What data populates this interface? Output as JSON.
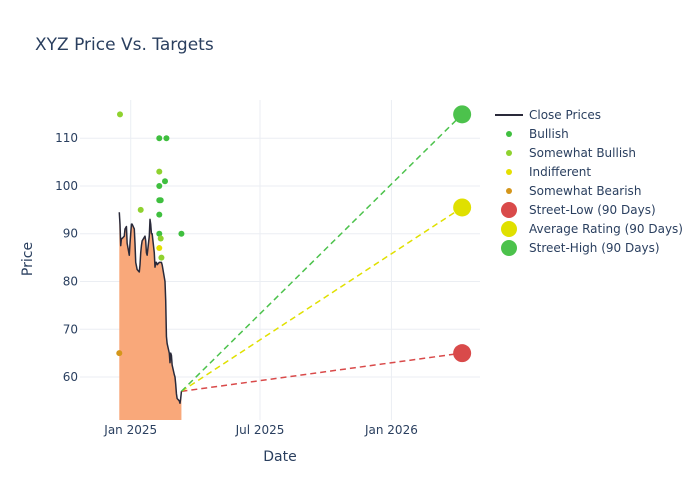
{
  "chart_data": {
    "type": "line",
    "title": "XYZ Price Vs. Targets",
    "xlabel": "Date",
    "ylabel": "Price",
    "xlim": [
      "2024-10-22",
      "2026-05-05"
    ],
    "ylim": [
      51,
      118
    ],
    "x_ticks": [
      {
        "date": "2025-01-01",
        "label": "Jan 2025"
      },
      {
        "date": "2025-07-01",
        "label": "Jul 2025"
      },
      {
        "date": "2026-01-01",
        "label": "Jan 2026"
      }
    ],
    "y_ticks": [
      60,
      70,
      80,
      90,
      100,
      110
    ],
    "grid": true,
    "legend_position": "right",
    "colors": {
      "close": "#2a2a3a",
      "area": "#f9a87a",
      "bullish": "#3fbf3f",
      "somewhat_bullish": "#8fd22f",
      "indifferent": "#e5e000",
      "somewhat_bearish": "#d4961a",
      "street_low": "#d94a4a",
      "average": "#e0e000",
      "street_high": "#4cc24c"
    },
    "series": [
      {
        "name": "Close Prices",
        "points": [
          [
            "2024-12-16",
            94.5
          ],
          [
            "2024-12-17",
            92.0
          ],
          [
            "2024-12-18",
            87.5
          ],
          [
            "2024-12-19",
            89.0
          ],
          [
            "2024-12-20",
            89.0
          ],
          [
            "2024-12-23",
            89.5
          ],
          [
            "2024-12-24",
            91.0
          ],
          [
            "2024-12-26",
            91.5
          ],
          [
            "2024-12-27",
            88.0
          ],
          [
            "2024-12-30",
            85.5
          ],
          [
            "2024-12-31",
            88.0
          ],
          [
            "2025-01-02",
            92.0
          ],
          [
            "2025-01-03",
            92.0
          ],
          [
            "2025-01-06",
            91.0
          ],
          [
            "2025-01-07",
            88.0
          ],
          [
            "2025-01-08",
            84.0
          ],
          [
            "2025-01-10",
            82.5
          ],
          [
            "2025-01-13",
            82.0
          ],
          [
            "2025-01-14",
            83.5
          ],
          [
            "2025-01-15",
            86.0
          ],
          [
            "2025-01-16",
            87.5
          ],
          [
            "2025-01-17",
            88.5
          ],
          [
            "2025-01-21",
            89.5
          ],
          [
            "2025-01-22",
            88.5
          ],
          [
            "2025-01-23",
            86.0
          ],
          [
            "2025-01-24",
            85.5
          ],
          [
            "2025-01-27",
            89.5
          ],
          [
            "2025-01-28",
            93.0
          ],
          [
            "2025-01-29",
            92.0
          ],
          [
            "2025-01-30",
            90.0
          ],
          [
            "2025-01-31",
            90.0
          ],
          [
            "2025-02-03",
            86.0
          ],
          [
            "2025-02-04",
            83.0
          ],
          [
            "2025-02-05",
            84.0
          ],
          [
            "2025-02-06",
            84.0
          ],
          [
            "2025-02-07",
            83.5
          ],
          [
            "2025-02-10",
            84.0
          ],
          [
            "2025-02-11",
            84.0
          ],
          [
            "2025-02-12",
            84.0
          ],
          [
            "2025-02-13",
            84.0
          ],
          [
            "2025-02-14",
            83.5
          ],
          [
            "2025-02-18",
            80.0
          ],
          [
            "2025-02-19",
            76.0
          ],
          [
            "2025-02-20",
            68.5
          ],
          [
            "2025-02-21",
            67.0
          ],
          [
            "2025-02-24",
            65.0
          ],
          [
            "2025-02-25",
            63.0
          ],
          [
            "2025-02-26",
            65.0
          ],
          [
            "2025-02-27",
            64.5
          ],
          [
            "2025-02-28",
            62.5
          ],
          [
            "2025-03-03",
            60.5
          ],
          [
            "2025-03-04",
            60.0
          ],
          [
            "2025-03-05",
            58.5
          ],
          [
            "2025-03-06",
            56.5
          ],
          [
            "2025-03-07",
            55.5
          ],
          [
            "2025-03-10",
            55.0
          ],
          [
            "2025-03-11",
            54.5
          ],
          [
            "2025-03-12",
            55.5
          ],
          [
            "2025-03-13",
            57.0
          ]
        ]
      },
      {
        "name": "Bullish",
        "points": [
          [
            "2025-02-10",
            110
          ],
          [
            "2025-02-10",
            100
          ],
          [
            "2025-02-10",
            97
          ],
          [
            "2025-02-10",
            94
          ],
          [
            "2025-02-10",
            90
          ],
          [
            "2025-02-12",
            97
          ],
          [
            "2025-02-18",
            101
          ],
          [
            "2025-02-20",
            110
          ],
          [
            "2025-03-13",
            90
          ]
        ]
      },
      {
        "name": "Somewhat Bullish",
        "points": [
          [
            "2024-12-17",
            115
          ],
          [
            "2025-01-15",
            95
          ],
          [
            "2025-02-10",
            103
          ],
          [
            "2025-02-12",
            89
          ],
          [
            "2025-02-13",
            85
          ]
        ]
      },
      {
        "name": "Indifferent",
        "points": [
          [
            "2025-02-10",
            87
          ]
        ]
      },
      {
        "name": "Somewhat Bearish",
        "points": [
          [
            "2024-12-16",
            65
          ]
        ]
      },
      {
        "name": "Street-Low (90 Days)",
        "from": [
          "2025-03-13",
          57.0
        ],
        "to": [
          "2026-04-10",
          65.0
        ]
      },
      {
        "name": "Average Rating (90 Days)",
        "from": [
          "2025-03-13",
          57.0
        ],
        "to": [
          "2026-04-10",
          95.5
        ]
      },
      {
        "name": "Street-High (90 Days)",
        "from": [
          "2025-03-13",
          57.0
        ],
        "to": [
          "2026-04-10",
          115.0
        ]
      }
    ]
  }
}
